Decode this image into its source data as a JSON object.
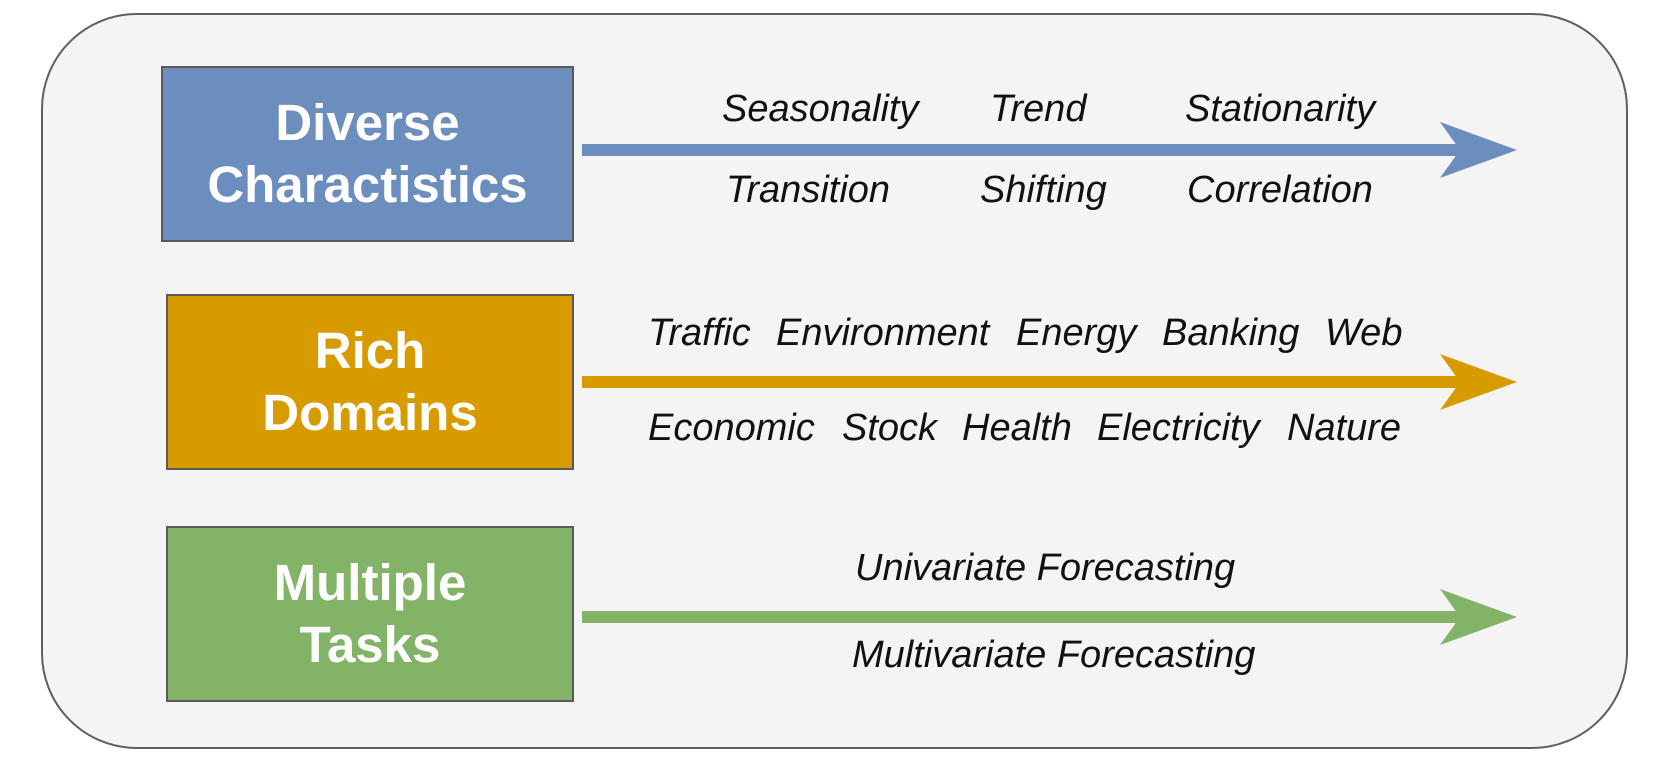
{
  "rows": [
    {
      "title_line1": "Diverse",
      "title_line2": "Charactistics",
      "color": "#6c8ebf",
      "items_top": [
        "Seasonality",
        "Trend",
        "Stationarity"
      ],
      "items_bottom": [
        "Transition",
        "Shifting",
        "Correlation"
      ]
    },
    {
      "title_line1": "Rich",
      "title_line2": "Domains",
      "color": "#d79b00",
      "items_top": [
        "Traffic",
        "Environment",
        "Energy",
        "Banking",
        "Web"
      ],
      "items_bottom": [
        "Economic",
        "Stock",
        "Health",
        "Electricity",
        "Nature"
      ]
    },
    {
      "title_line1": "Multiple",
      "title_line2": "Tasks",
      "color": "#82b366",
      "items_top": [
        "Univariate Forecasting"
      ],
      "items_bottom": [
        "Multivariate Forecasting"
      ]
    }
  ]
}
